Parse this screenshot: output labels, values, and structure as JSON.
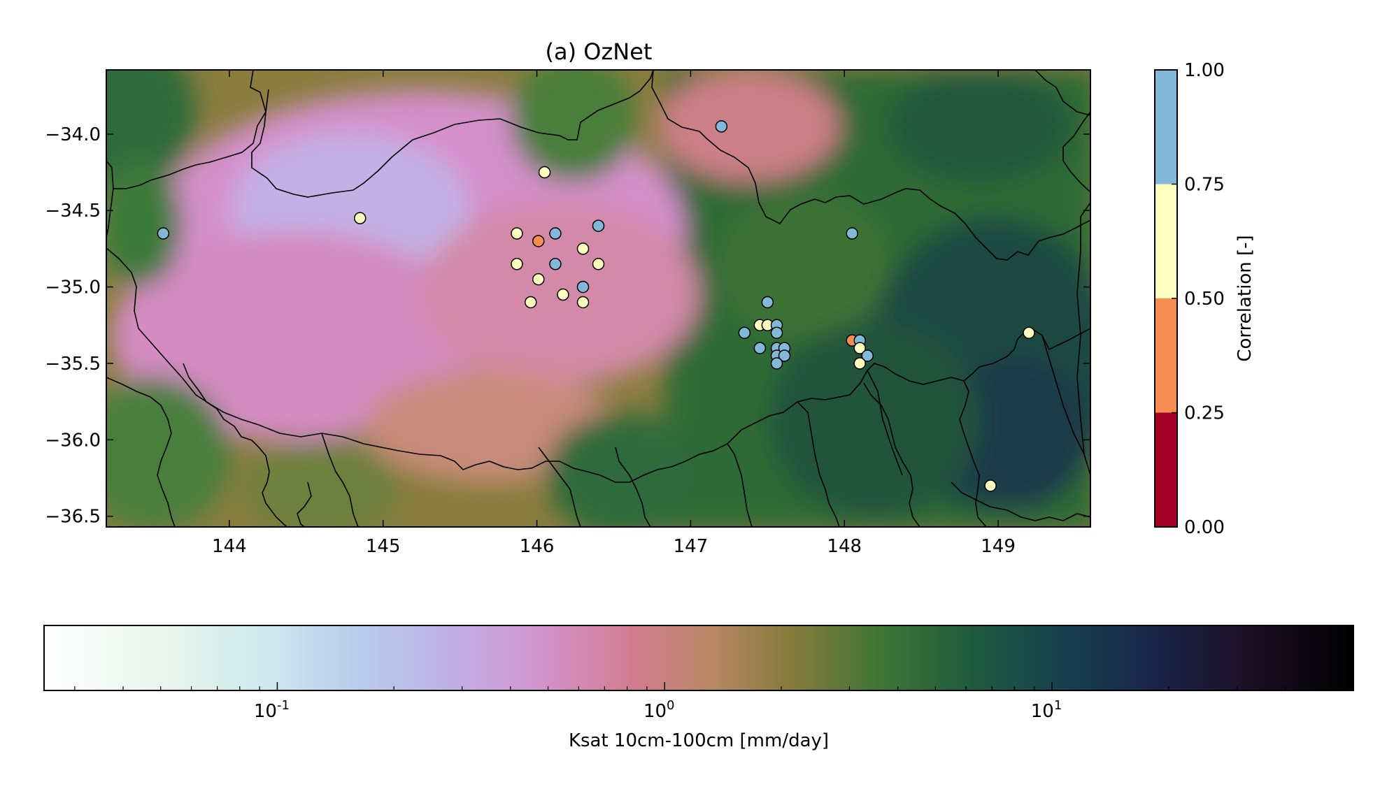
{
  "title": "(a) OzNet",
  "map": {
    "lon_range": [
      143.2,
      149.6
    ],
    "lat_range": [
      -36.57,
      -33.58
    ],
    "lon_ticks": [
      "144",
      "145",
      "146",
      "147",
      "148",
      "149"
    ],
    "lat_ticks": [
      "−34.0",
      "−34.5",
      "−35.0",
      "−35.5",
      "−36.0",
      "−36.5"
    ]
  },
  "correlation_colorbar": {
    "label": "Correlation [-]",
    "ticks": [
      "0.00",
      "0.25",
      "0.50",
      "0.75",
      "1.00"
    ],
    "bins": [
      {
        "from": 0.0,
        "to": 0.25,
        "color": "#a50026"
      },
      {
        "from": 0.25,
        "to": 0.5,
        "color": "#f88d52"
      },
      {
        "from": 0.5,
        "to": 0.75,
        "color": "#ffffbf"
      },
      {
        "from": 0.75,
        "to": 1.0,
        "color": "#83b9d8"
      }
    ]
  },
  "ksat_colorbar": {
    "label": "Ksat 10cm-100cm [mm/day]",
    "scale": "log",
    "range": [
      0.025,
      60
    ],
    "ticks": [
      {
        "base": "10",
        "exp": "-1",
        "value": 0.1
      },
      {
        "base": "10",
        "exp": "0",
        "value": 1
      },
      {
        "base": "10",
        "exp": "1",
        "value": 10
      }
    ],
    "colormap": "cubehelix_r"
  },
  "chart_data": {
    "type": "scatter",
    "title": "(a) OzNet",
    "xlabel": "",
    "ylabel": "",
    "xlim": [
      143.2,
      149.6
    ],
    "ylim": [
      -36.57,
      -33.58
    ],
    "grid": false,
    "points": [
      {
        "lon": 143.57,
        "lat": -34.65,
        "r": 0.85
      },
      {
        "lon": 144.85,
        "lat": -34.55,
        "r": 0.6
      },
      {
        "lon": 146.05,
        "lat": -34.25,
        "r": 0.6
      },
      {
        "lon": 147.2,
        "lat": -33.95,
        "r": 0.85
      },
      {
        "lon": 145.87,
        "lat": -34.65,
        "r": 0.6
      },
      {
        "lon": 146.01,
        "lat": -34.7,
        "r": 0.4
      },
      {
        "lon": 146.12,
        "lat": -34.65,
        "r": 0.85
      },
      {
        "lon": 146.4,
        "lat": -34.6,
        "r": 0.85
      },
      {
        "lon": 146.3,
        "lat": -34.75,
        "r": 0.6
      },
      {
        "lon": 145.87,
        "lat": -34.85,
        "r": 0.6
      },
      {
        "lon": 146.12,
        "lat": -34.85,
        "r": 0.85
      },
      {
        "lon": 146.4,
        "lat": -34.85,
        "r": 0.6
      },
      {
        "lon": 146.01,
        "lat": -34.95,
        "r": 0.6
      },
      {
        "lon": 146.3,
        "lat": -35.0,
        "r": 0.85
      },
      {
        "lon": 146.17,
        "lat": -35.05,
        "r": 0.6
      },
      {
        "lon": 145.96,
        "lat": -35.1,
        "r": 0.6
      },
      {
        "lon": 146.3,
        "lat": -35.1,
        "r": 0.6
      },
      {
        "lon": 147.5,
        "lat": -35.1,
        "r": 0.85
      },
      {
        "lon": 147.45,
        "lat": -35.25,
        "r": 0.6
      },
      {
        "lon": 147.5,
        "lat": -35.25,
        "r": 0.6
      },
      {
        "lon": 147.56,
        "lat": -35.25,
        "r": 0.85
      },
      {
        "lon": 147.35,
        "lat": -35.3,
        "r": 0.85
      },
      {
        "lon": 147.56,
        "lat": -35.3,
        "r": 0.85
      },
      {
        "lon": 147.45,
        "lat": -35.4,
        "r": 0.85
      },
      {
        "lon": 147.56,
        "lat": -35.4,
        "r": 0.85
      },
      {
        "lon": 147.61,
        "lat": -35.4,
        "r": 0.85
      },
      {
        "lon": 147.56,
        "lat": -35.45,
        "r": 0.85
      },
      {
        "lon": 147.61,
        "lat": -35.45,
        "r": 0.85
      },
      {
        "lon": 147.56,
        "lat": -35.5,
        "r": 0.85
      },
      {
        "lon": 148.05,
        "lat": -34.65,
        "r": 0.85
      },
      {
        "lon": 148.05,
        "lat": -35.35,
        "r": 0.4
      },
      {
        "lon": 148.1,
        "lat": -35.35,
        "r": 0.85
      },
      {
        "lon": 148.1,
        "lat": -35.4,
        "r": 0.6
      },
      {
        "lon": 148.15,
        "lat": -35.45,
        "r": 0.85
      },
      {
        "lon": 148.1,
        "lat": -35.5,
        "r": 0.6
      },
      {
        "lon": 149.2,
        "lat": -35.3,
        "r": 0.6
      },
      {
        "lon": 148.95,
        "lat": -36.3,
        "r": 0.6
      }
    ]
  }
}
